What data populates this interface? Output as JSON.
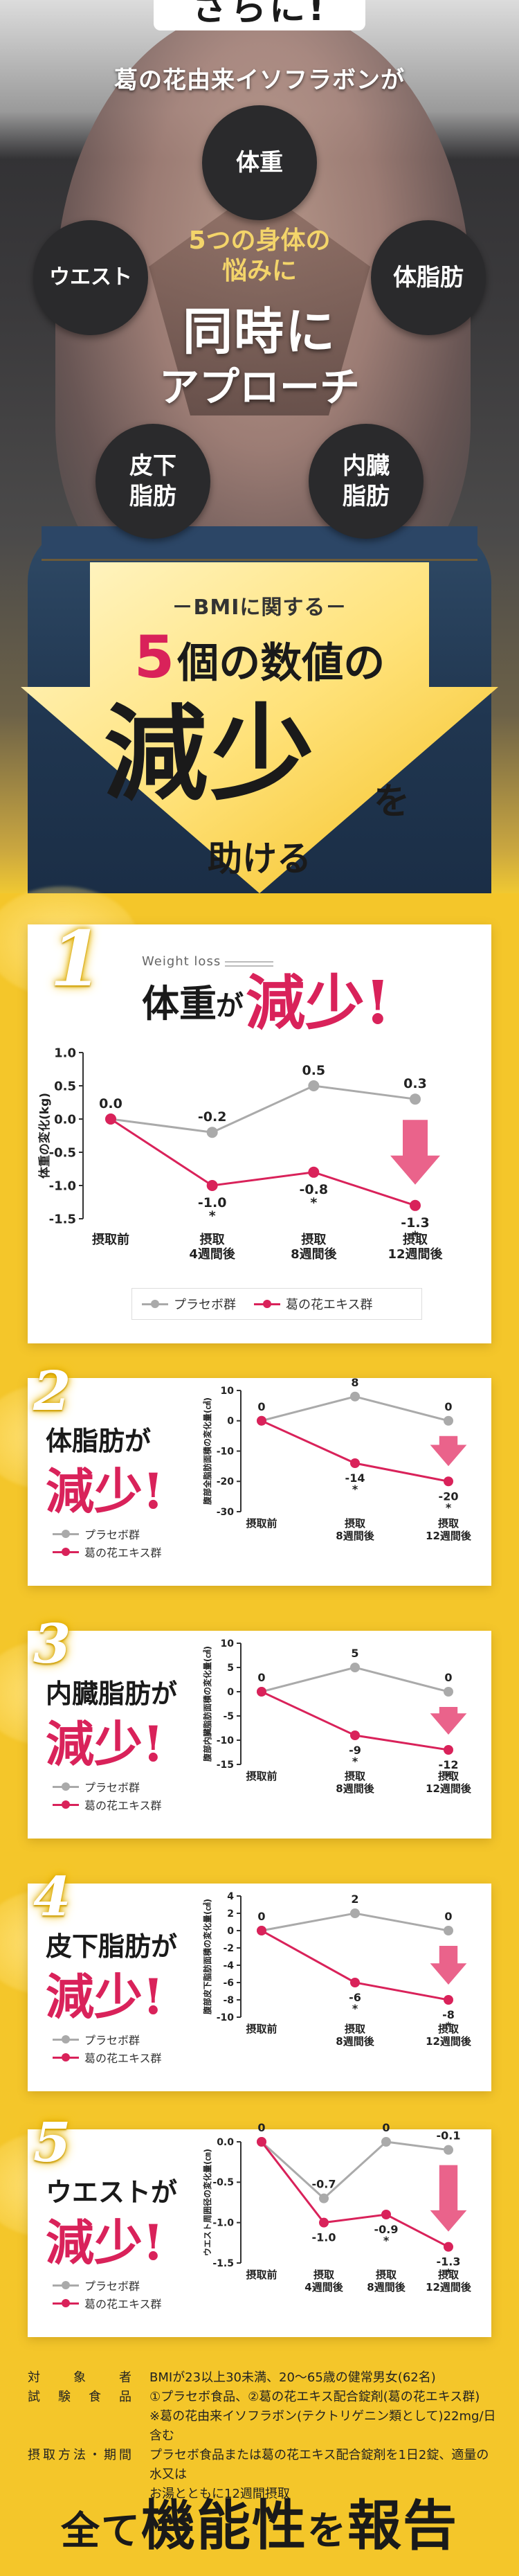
{
  "hero": {
    "badge": "さらに!",
    "lead": "葛の花由来イソフラボンが",
    "circles": {
      "weight": "体重",
      "waist": "ウエスト",
      "bodyfat": "体脂肪",
      "subcutaneous": "皮下\n脂肪",
      "visceral": "内臓\n脂肪"
    },
    "center": {
      "line1": "5つの身体の",
      "line2": "悩みに",
      "line3": "同時に",
      "line4": "アプローチ"
    }
  },
  "bmi": {
    "label": "－BMIに関する－",
    "count_num": "5",
    "count_text": "個の数値の",
    "big": "減少",
    "wo": "を",
    "help": "助ける"
  },
  "legend": {
    "placebo": "プラセボ群",
    "kuzu": "葛の花エキス群"
  },
  "colors": {
    "placebo": "#aaaaaa",
    "kuzu": "#d9225a",
    "arrow": "#e8527e"
  },
  "cards": [
    {
      "num": "1",
      "sub": "Weight loss",
      "label": "体重",
      "ga": "が",
      "genshou": "減少!",
      "chart_data": {
        "type": "line",
        "ylabel": "体重の変化(kg)",
        "categories": [
          "摂取前",
          "摂取\n4週間後",
          "摂取\n8週間後",
          "摂取\n12週間後"
        ],
        "ylim": [
          -1.5,
          1.0
        ],
        "yticks": [
          "1.0",
          "0.5",
          "0.0",
          "-0.5",
          "-1.0",
          "-1.5"
        ],
        "series": [
          {
            "name": "プラセボ群",
            "values": [
              0.0,
              -0.2,
              0.5,
              0.3
            ],
            "labels": [
              "0.0",
              "-0.2",
              "0.5",
              "0.3"
            ]
          },
          {
            "name": "葛の花エキス群",
            "values": [
              0.0,
              -1.0,
              -0.8,
              -1.3
            ],
            "labels": [
              "",
              "-1.0",
              "-0.8",
              "-1.3"
            ],
            "stars": [
              "",
              "*",
              "*",
              "*"
            ]
          }
        ]
      }
    },
    {
      "num": "2",
      "label": "体脂肪が",
      "genshou": "減少!",
      "chart_data": {
        "type": "line",
        "ylabel": "腹部全脂肪面積の変化量(㎠)",
        "categories": [
          "摂取前",
          "摂取\n8週間後",
          "摂取\n12週間後"
        ],
        "ylim": [
          -30,
          10
        ],
        "yticks": [
          "10",
          "0",
          "-10",
          "-20",
          "-30"
        ],
        "series": [
          {
            "name": "プラセボ群",
            "values": [
              0,
              8,
              0
            ],
            "labels": [
              "0",
              "8",
              "0"
            ]
          },
          {
            "name": "葛の花エキス群",
            "values": [
              0,
              -14,
              -20
            ],
            "labels": [
              "",
              "-14",
              "-20"
            ],
            "stars": [
              "",
              "*",
              "*"
            ]
          }
        ]
      }
    },
    {
      "num": "3",
      "label": "内臓脂肪が",
      "genshou": "減少!",
      "chart_data": {
        "type": "line",
        "ylabel": "腹部内臓脂肪面積の変化量(㎠)",
        "categories": [
          "摂取前",
          "摂取\n8週間後",
          "摂取\n12週間後"
        ],
        "ylim": [
          -15,
          10
        ],
        "yticks": [
          "10",
          "5",
          "0",
          "-5",
          "-10",
          "-15"
        ],
        "series": [
          {
            "name": "プラセボ群",
            "values": [
              0,
              5,
              0
            ],
            "labels": [
              "0",
              "5",
              "0"
            ]
          },
          {
            "name": "葛の花エキス群",
            "values": [
              0,
              -9,
              -12
            ],
            "labels": [
              "",
              "-9",
              "-12"
            ],
            "stars": [
              "",
              "*",
              "*"
            ]
          }
        ]
      }
    },
    {
      "num": "4",
      "label": "皮下脂肪が",
      "genshou": "減少!",
      "chart_data": {
        "type": "line",
        "ylabel": "腹部皮下脂肪面積の変化量(㎠)",
        "categories": [
          "摂取前",
          "摂取\n8週間後",
          "摂取\n12週間後"
        ],
        "ylim": [
          -10,
          4
        ],
        "yticks": [
          "4",
          "2",
          "0",
          "-2",
          "-4",
          "-6",
          "-8",
          "-10"
        ],
        "series": [
          {
            "name": "プラセボ群",
            "values": [
              0,
              2,
              0
            ],
            "labels": [
              "0",
              "2",
              "0"
            ]
          },
          {
            "name": "葛の花エキス群",
            "values": [
              0,
              -6,
              -8
            ],
            "labels": [
              "",
              "-6",
              "-8"
            ],
            "stars": [
              "",
              "*",
              "*"
            ]
          }
        ]
      }
    },
    {
      "num": "5",
      "label": "ウエストが",
      "genshou": "減少!",
      "chart_data": {
        "type": "line",
        "ylabel": "ウエスト周囲径の変化量(㎝)",
        "categories": [
          "摂取前",
          "摂取\n4週間後",
          "摂取\n8週間後",
          "摂取\n12週間後"
        ],
        "ylim": [
          -1.5,
          0.0
        ],
        "yticks": [
          "0.0",
          "-0.5",
          "-1.0",
          "-1.5"
        ],
        "series": [
          {
            "name": "プラセボ群",
            "values": [
              0,
              -0.7,
              0,
              -0.1
            ],
            "labels": [
              "0",
              "-0.7",
              "0",
              "-0.1"
            ]
          },
          {
            "name": "葛の花エキス群",
            "values": [
              0,
              -1.0,
              -0.9,
              -1.3
            ],
            "labels": [
              "",
              "-1.0",
              "-0.9",
              "-1.3"
            ],
            "stars": [
              "",
              "",
              "*",
              "*"
            ]
          }
        ]
      }
    }
  ],
  "notes": [
    {
      "k": "対象者",
      "v": [
        "BMIが23以上30未満、20～65歳の健常男女(62名)"
      ]
    },
    {
      "k": "試験食品",
      "v": [
        "①プラセボ食品、②葛の花エキス配合錠剤(葛の花エキス群)",
        "※葛の花由来イソフラボン(テクトリゲニン類として)22mg/日含む"
      ]
    },
    {
      "k": "摂取方法・期間",
      "v": [
        "プラセボ食品または葛の花エキス配合錠剤を1日2錠、適量の水又は",
        "お湯とともに12週間摂取"
      ]
    }
  ],
  "final": {
    "a": "全て",
    "b": "機能性",
    "c": "を",
    "d": "報告"
  }
}
